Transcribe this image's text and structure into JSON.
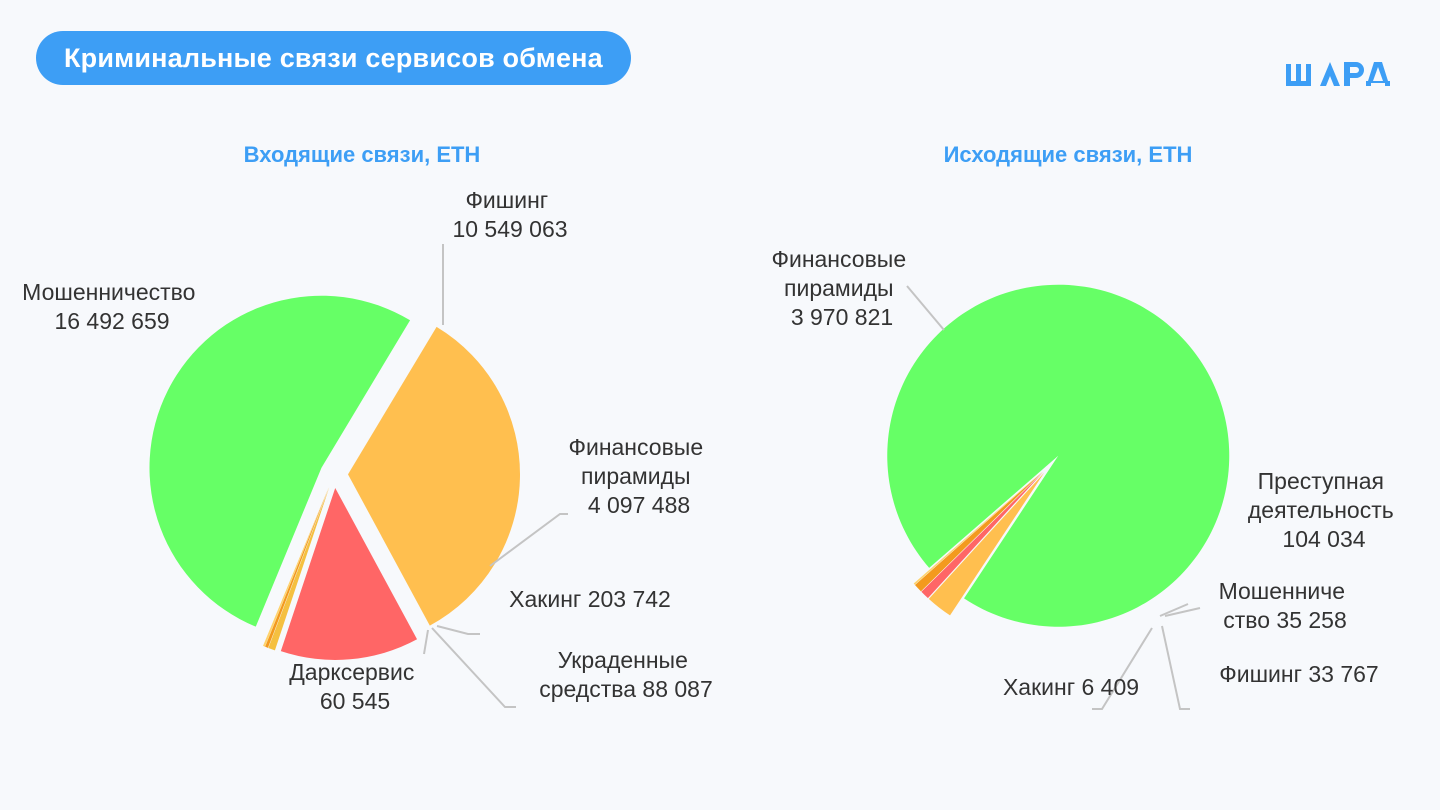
{
  "header": {
    "title": "Криминальные связи сервисов обмена",
    "logo_text": "ШАРД"
  },
  "colors": {
    "accent": "#3d9ef5",
    "green": "#66ff66",
    "orange": "#ffbf4f",
    "red": "#ff6666",
    "dark_orange": "#f39a1e"
  },
  "chart_data": [
    {
      "type": "pie",
      "title": "Входящие связи, ETH",
      "slices": [
        {
          "name": "Фишинг",
          "value": 10549063,
          "value_label": "10 549 063",
          "color": "#ffbf4f"
        },
        {
          "name": "Финансовые пирамиды",
          "value": 4097488,
          "value_label": "4 097 488",
          "color": "#ff6666"
        },
        {
          "name": "Хакинг",
          "value": 203742,
          "value_label": "203 742",
          "color": "#f5c040"
        },
        {
          "name": "Украденные средства",
          "value": 88087,
          "value_label": "88 087",
          "color": "#f39a1e"
        },
        {
          "name": "Дарксервис",
          "value": 60545,
          "value_label": "60 545",
          "color": "#ffd36b"
        },
        {
          "name": "Мошенничество",
          "value": 16492659,
          "value_label": "16 492 659",
          "color": "#66ff66"
        }
      ]
    },
    {
      "type": "pie",
      "title": "Исходящие связи, ETH",
      "slices": [
        {
          "name": "Финансовые пирамиды",
          "value": 3970821,
          "value_label": "3 970 821",
          "color": "#66ff66"
        },
        {
          "name": "Преступная деятельность",
          "value": 104034,
          "value_label": "104 034",
          "color": "#ffbf4f"
        },
        {
          "name": "Мошенничество",
          "value": 35258,
          "value_label": "35 258",
          "color": "#ff6666"
        },
        {
          "name": "Фишинг",
          "value": 33767,
          "value_label": "33 767",
          "color": "#f39a1e"
        },
        {
          "name": "Хакинг",
          "value": 6409,
          "value_label": "6 409",
          "color": "#ffd36b"
        }
      ]
    }
  ]
}
